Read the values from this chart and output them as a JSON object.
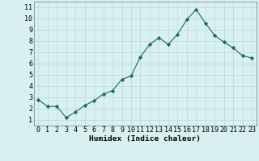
{
  "x": [
    0,
    1,
    2,
    3,
    4,
    5,
    6,
    7,
    8,
    9,
    10,
    11,
    12,
    13,
    14,
    15,
    16,
    17,
    18,
    19,
    20,
    21,
    22,
    23
  ],
  "y": [
    2.8,
    2.2,
    2.2,
    1.2,
    1.7,
    2.3,
    2.7,
    3.3,
    3.6,
    4.6,
    4.9,
    6.6,
    7.7,
    8.3,
    7.7,
    8.6,
    9.9,
    10.8,
    9.6,
    8.5,
    7.9,
    7.4,
    6.7,
    6.5
  ],
  "line_color": "#1a6b5a",
  "marker": "D",
  "marker_size": 2.2,
  "bg_color": "#d9f0f0",
  "grid_color": "#b8d8d8",
  "xlabel": "Humidex (Indice chaleur)",
  "xlim": [
    -0.5,
    23.5
  ],
  "ylim": [
    0.5,
    11.5
  ],
  "yticks": [
    1,
    2,
    3,
    4,
    5,
    6,
    7,
    8,
    9,
    10,
    11
  ],
  "xticks": [
    0,
    1,
    2,
    3,
    4,
    5,
    6,
    7,
    8,
    9,
    10,
    11,
    12,
    13,
    14,
    15,
    16,
    17,
    18,
    19,
    20,
    21,
    22,
    23
  ],
  "xlabel_fontsize": 6.8,
  "tick_fontsize": 6.0
}
